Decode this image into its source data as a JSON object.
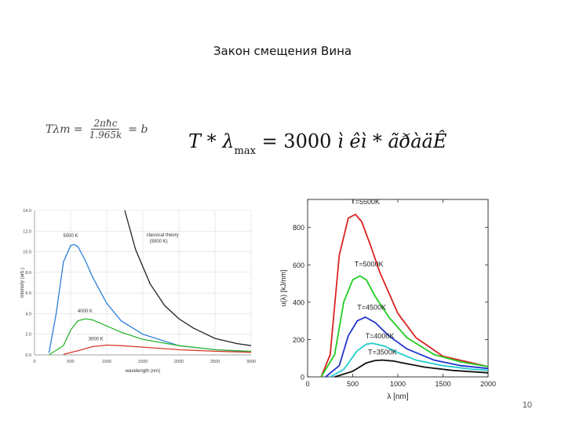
{
  "slide": {
    "title": "Закон смещения Вина",
    "page_number": "10"
  },
  "formula_small": {
    "lhs": "Tλm =",
    "numerator": "2πħc",
    "denominator": "1.965k",
    "rhs": "= b"
  },
  "formula_big": {
    "T": "T",
    "star": "* λ",
    "sub": "max",
    "eq": "= 3000",
    "units": "ì êì * ãðàäÊ"
  },
  "chart_data": [
    {
      "type": "line",
      "xlabel": "wavelength (nm)",
      "ylabel": "intensity (arb.)",
      "xlim": [
        0,
        3000
      ],
      "ylim": [
        0,
        14
      ],
      "x_ticks": [
        "0",
        "500",
        "1000",
        "1500",
        "2000",
        "2500",
        "3000"
      ],
      "y_ticks": [
        "0.0",
        "2.0",
        "4.0",
        "6.0",
        "8.0",
        "10.0",
        "12.0",
        "14.0"
      ],
      "grid": true,
      "series": [
        {
          "name": "5000 K",
          "color": "#2a7fd6",
          "x": [
            200,
            300,
            400,
            500,
            550,
            600,
            700,
            800,
            1000,
            1200,
            1500,
            2000,
            2500,
            3000
          ],
          "y": [
            0.2,
            4.0,
            9.0,
            10.6,
            10.7,
            10.5,
            9.2,
            7.6,
            5.0,
            3.3,
            2.0,
            0.9,
            0.5,
            0.3
          ]
        },
        {
          "name": "4000 K",
          "color": "#2fb82f",
          "x": [
            200,
            400,
            500,
            600,
            700,
            800,
            1000,
            1200,
            1500,
            2000,
            2500,
            3000
          ],
          "y": [
            0.0,
            0.9,
            2.4,
            3.3,
            3.5,
            3.4,
            2.8,
            2.2,
            1.5,
            0.9,
            0.5,
            0.35
          ]
        },
        {
          "name": "3000 K",
          "color": "#d83a2a",
          "x": [
            400,
            600,
            800,
            1000,
            1200,
            1500,
            2000,
            2500,
            3000
          ],
          "y": [
            0.05,
            0.4,
            0.8,
            0.95,
            0.9,
            0.75,
            0.5,
            0.35,
            0.25
          ]
        },
        {
          "name": "classical theory (5000 K)",
          "color": "#222222",
          "x": [
            1250,
            1400,
            1600,
            1800,
            2000,
            2200,
            2500,
            2800,
            3000
          ],
          "y": [
            14.0,
            10.2,
            6.9,
            4.8,
            3.5,
            2.6,
            1.6,
            1.1,
            0.9
          ]
        }
      ],
      "annotations": [
        {
          "text": "5000 K"
        },
        {
          "text": "4000 K"
        },
        {
          "text": "3000 K"
        },
        {
          "text": "classical theory (5000 K)"
        }
      ]
    },
    {
      "type": "line",
      "xlabel": "λ [nm]",
      "ylabel": "u(λ) [kJ/nm]",
      "xlim": [
        0,
        2000
      ],
      "ylim": [
        0,
        950
      ],
      "x_ticks": [
        "0",
        "500",
        "1000",
        "1500",
        "2000"
      ],
      "y_ticks": [
        "0",
        "200",
        "400",
        "600",
        "800"
      ],
      "grid": false,
      "series": [
        {
          "name": "T=5500K",
          "color": "#dd2222",
          "x": [
            150,
            250,
            350,
            450,
            530,
            600,
            700,
            800,
            1000,
            1200,
            1500,
            2000
          ],
          "y": [
            0,
            120,
            650,
            850,
            870,
            830,
            700,
            560,
            340,
            210,
            110,
            55
          ]
        },
        {
          "name": "T=5000K",
          "color": "#22cc22",
          "x": [
            150,
            300,
            400,
            500,
            580,
            650,
            750,
            900,
            1100,
            1400,
            1700,
            2000
          ],
          "y": [
            0,
            120,
            400,
            520,
            540,
            520,
            430,
            320,
            210,
            120,
            80,
            55
          ]
        },
        {
          "name": "T=4500K",
          "color": "#2233cc",
          "x": [
            200,
            350,
            450,
            550,
            640,
            750,
            900,
            1100,
            1400,
            1700,
            2000
          ],
          "y": [
            0,
            60,
            220,
            300,
            320,
            290,
            220,
            150,
            90,
            60,
            45
          ]
        },
        {
          "name": "T=4000K",
          "color": "#22cccc",
          "x": [
            250,
            400,
            550,
            650,
            720,
            850,
            1000,
            1200,
            1500,
            1800,
            2000
          ],
          "y": [
            0,
            40,
            140,
            175,
            180,
            165,
            130,
            90,
            60,
            42,
            35
          ]
        },
        {
          "name": "T=3500K",
          "color": "#111111",
          "x": [
            300,
            500,
            650,
            750,
            830,
            950,
            1100,
            1300,
            1600,
            2000
          ],
          "y": [
            0,
            30,
            75,
            88,
            90,
            85,
            70,
            52,
            35,
            22
          ]
        }
      ]
    }
  ]
}
